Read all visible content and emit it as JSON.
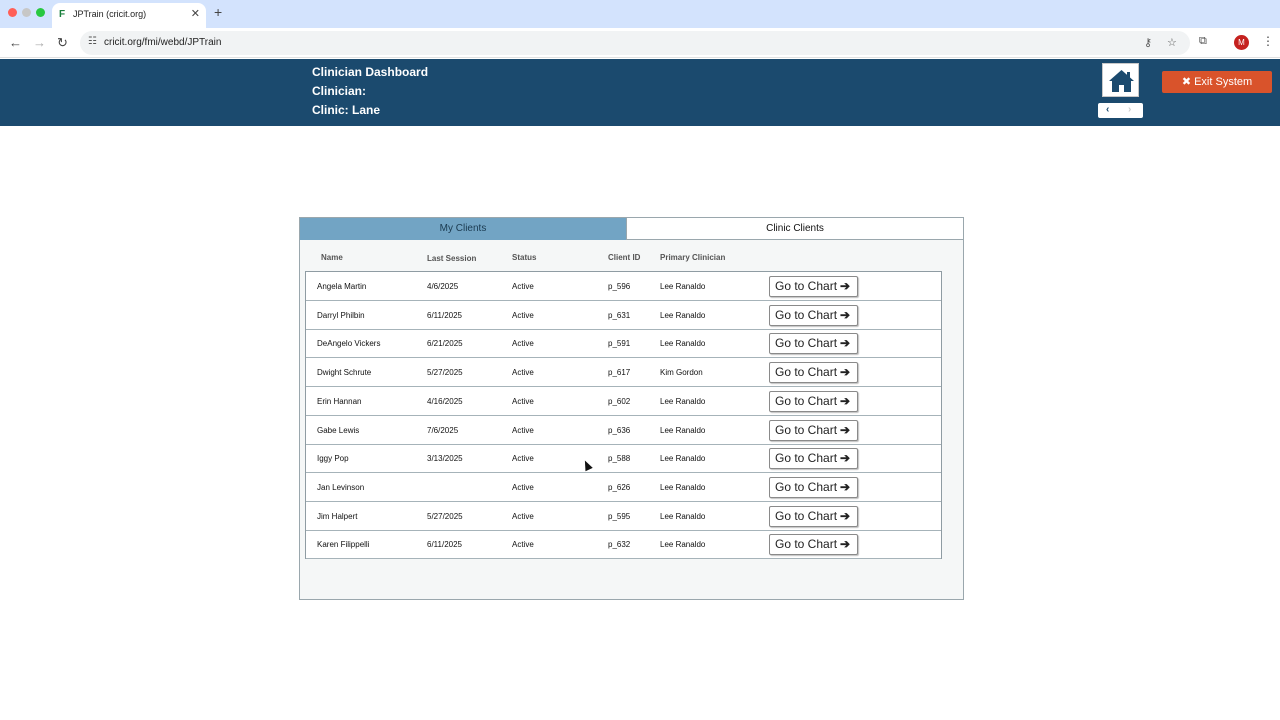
{
  "browser": {
    "tab_title": "JPTrain (cricit.org)",
    "url": "cricit.org/fmi/webd/JPTrain",
    "profile_initial": "M"
  },
  "header": {
    "title": "Clinician Dashboard",
    "clinician": "Clinician:",
    "clinic": "Clinic: Lane",
    "exit_label": "Exit System"
  },
  "tabs": {
    "my_clients": "My Clients",
    "clinic_clients": "Clinic Clients"
  },
  "table": {
    "columns": {
      "name": "Name",
      "last_session": "Last Session",
      "status": "Status",
      "client_id": "Client ID",
      "primary_clinician": "Primary Clinician"
    },
    "button_label": "Go to Chart",
    "rows": [
      {
        "name": "Angela Martin",
        "last_session": "4/6/2025",
        "status": "Active",
        "client_id": "p_596",
        "clinician": "Lee Ranaldo"
      },
      {
        "name": "Darryl Philbin",
        "last_session": "6/11/2025",
        "status": "Active",
        "client_id": "p_631",
        "clinician": "Lee Ranaldo"
      },
      {
        "name": "DeAngelo Vickers",
        "last_session": "6/21/2025",
        "status": "Active",
        "client_id": "p_591",
        "clinician": "Lee Ranaldo"
      },
      {
        "name": "Dwight  Schrute",
        "last_session": "5/27/2025",
        "status": "Active",
        "client_id": "p_617",
        "clinician": "Kim Gordon"
      },
      {
        "name": "Erin  Hannan",
        "last_session": "4/16/2025",
        "status": "Active",
        "client_id": "p_602",
        "clinician": "Lee Ranaldo"
      },
      {
        "name": "Gabe Lewis",
        "last_session": "7/6/2025",
        "status": "Active",
        "client_id": "p_636",
        "clinician": "Lee Ranaldo"
      },
      {
        "name": "Iggy Pop",
        "last_session": "3/13/2025",
        "status": "Active",
        "client_id": "p_588",
        "clinician": "Lee Ranaldo"
      },
      {
        "name": "Jan Levinson",
        "last_session": "",
        "status": "Active",
        "client_id": "p_626",
        "clinician": "Lee Ranaldo"
      },
      {
        "name": "Jim Halpert",
        "last_session": "5/27/2025",
        "status": "Active",
        "client_id": "p_595",
        "clinician": "Lee Ranaldo"
      },
      {
        "name": "Karen Filippelli",
        "last_session": "6/11/2025",
        "status": "Active",
        "client_id": "p_632",
        "clinician": "Lee Ranaldo"
      }
    ]
  },
  "colors": {
    "header_bg": "#1b4a6e",
    "active_tab": "#72a4c4",
    "exit_button": "#d9532b"
  }
}
